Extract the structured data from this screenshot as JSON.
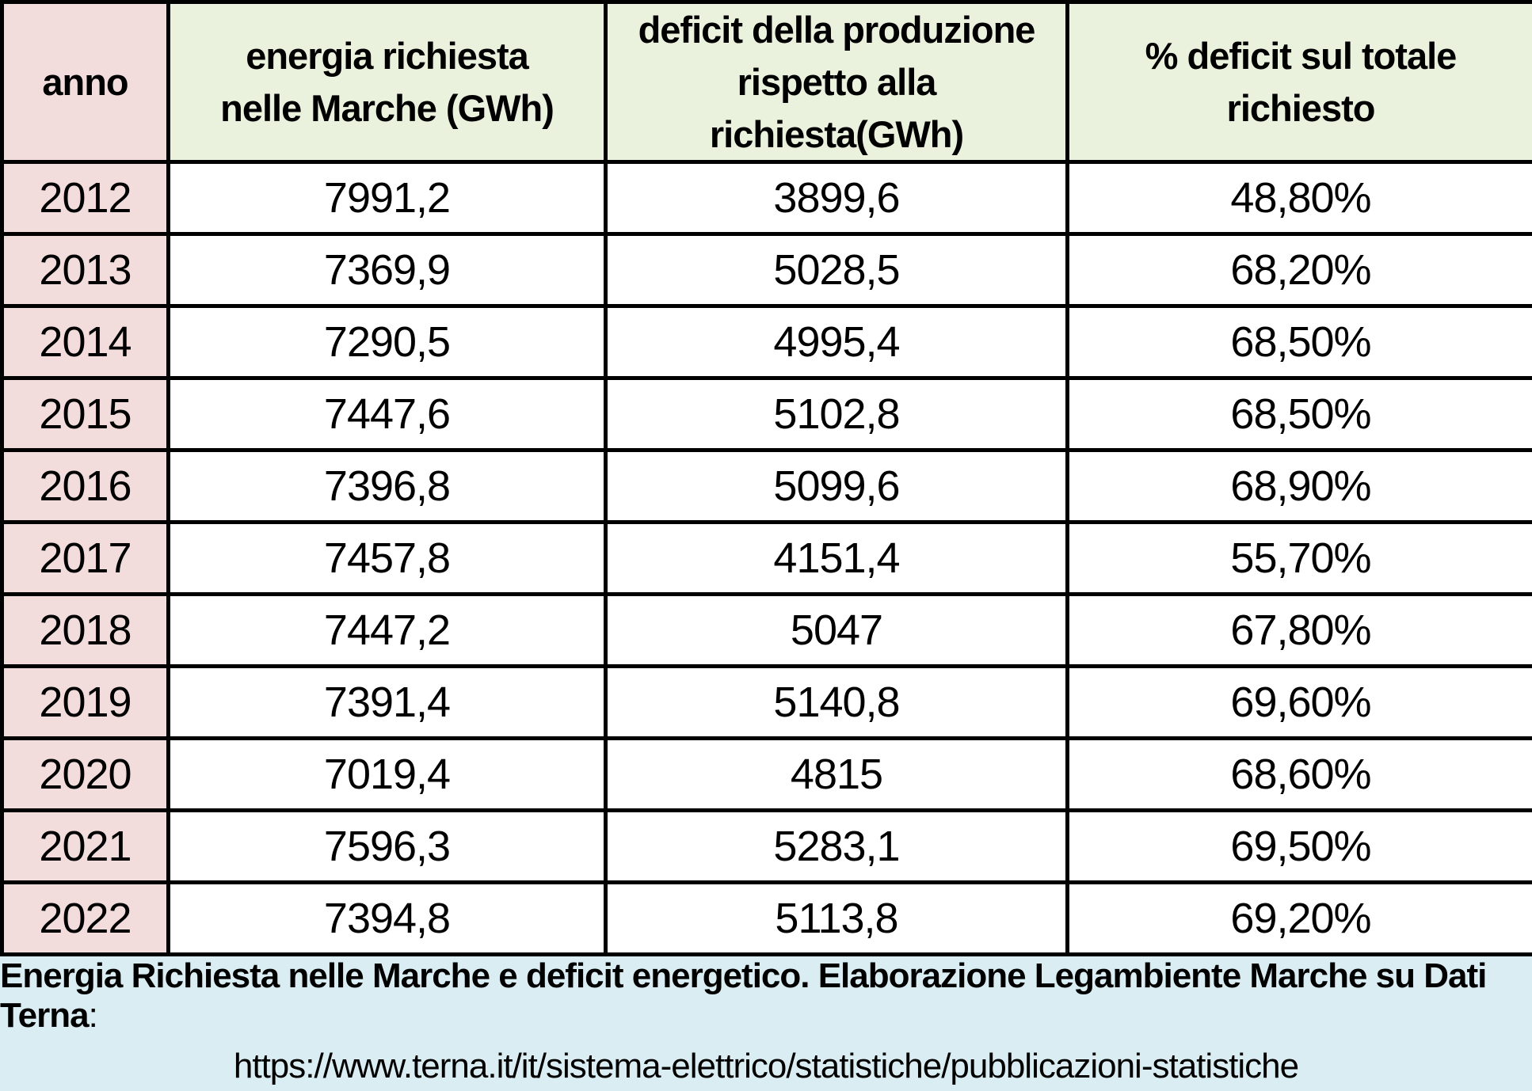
{
  "table": {
    "columns": [
      {
        "label": "anno"
      },
      {
        "line1": "energia richiesta",
        "line2": "nelle Marche (GWh)"
      },
      {
        "line1": "deficit della produzione",
        "line2": "rispetto alla richiesta(GWh)"
      },
      {
        "label": "% deficit sul totale richiesto"
      }
    ],
    "rows": [
      {
        "anno": "2012",
        "energia": "7991,2",
        "deficit": "3899,6",
        "percent": "48,80%"
      },
      {
        "anno": "2013",
        "energia": "7369,9",
        "deficit": "5028,5",
        "percent": "68,20%"
      },
      {
        "anno": "2014",
        "energia": "7290,5",
        "deficit": "4995,4",
        "percent": "68,50%"
      },
      {
        "anno": "2015",
        "energia": "7447,6",
        "deficit": "5102,8",
        "percent": "68,50%"
      },
      {
        "anno": "2016",
        "energia": "7396,8",
        "deficit": "5099,6",
        "percent": "68,90%"
      },
      {
        "anno": "2017",
        "energia": "7457,8",
        "deficit": "4151,4",
        "percent": "55,70%"
      },
      {
        "anno": "2018",
        "energia": "7447,2",
        "deficit": "5047",
        "percent": "67,80%"
      },
      {
        "anno": "2019",
        "energia": "7391,4",
        "deficit": "5140,8",
        "percent": "69,60%"
      },
      {
        "anno": "2020",
        "energia": "7019,4",
        "deficit": "4815",
        "percent": "68,60%"
      },
      {
        "anno": "2021",
        "energia": "7596,3",
        "deficit": "5283,1",
        "percent": "69,50%"
      },
      {
        "anno": "2022",
        "energia": "7394,8",
        "deficit": "5113,8",
        "percent": "69,20%"
      }
    ]
  },
  "footer": {
    "caption_bold": "Energia Richiesta nelle Marche e deficit energetico. Elaborazione Legambiente Marche su Dati Terna",
    "caption_colon": ":",
    "source_url": "https://www.terna.it/it/sistema-elettrico/statistiche/pubblicazioni-statistiche"
  },
  "colors": {
    "year_column_bg": "#f2dddc",
    "header_bg": "#eaf1dd",
    "footer_bg": "#d9edf3",
    "border": "#000000"
  },
  "chart_data": {
    "type": "table",
    "title": "Energia Richiesta nelle Marche e deficit energetico. Elaborazione Legambiente Marche su Dati Terna",
    "source": "https://www.terna.it/it/sistema-elettrico/statistiche/pubblicazioni-statistiche",
    "categories": [
      "2012",
      "2013",
      "2014",
      "2015",
      "2016",
      "2017",
      "2018",
      "2019",
      "2020",
      "2021",
      "2022"
    ],
    "series": [
      {
        "name": "energia richiesta nelle Marche (GWh)",
        "values": [
          7991.2,
          7369.9,
          7290.5,
          7447.6,
          7396.8,
          7457.8,
          7447.2,
          7391.4,
          7019.4,
          7596.3,
          7394.8
        ]
      },
      {
        "name": "deficit della produzione rispetto alla richiesta(GWh)",
        "values": [
          3899.6,
          5028.5,
          4995.4,
          5102.8,
          5099.6,
          4151.4,
          5047,
          5140.8,
          4815,
          5283.1,
          5113.8
        ]
      },
      {
        "name": "% deficit sul totale richiesto",
        "values": [
          48.8,
          68.2,
          68.5,
          68.5,
          68.9,
          55.7,
          67.8,
          69.6,
          68.6,
          69.5,
          69.2
        ]
      }
    ]
  }
}
